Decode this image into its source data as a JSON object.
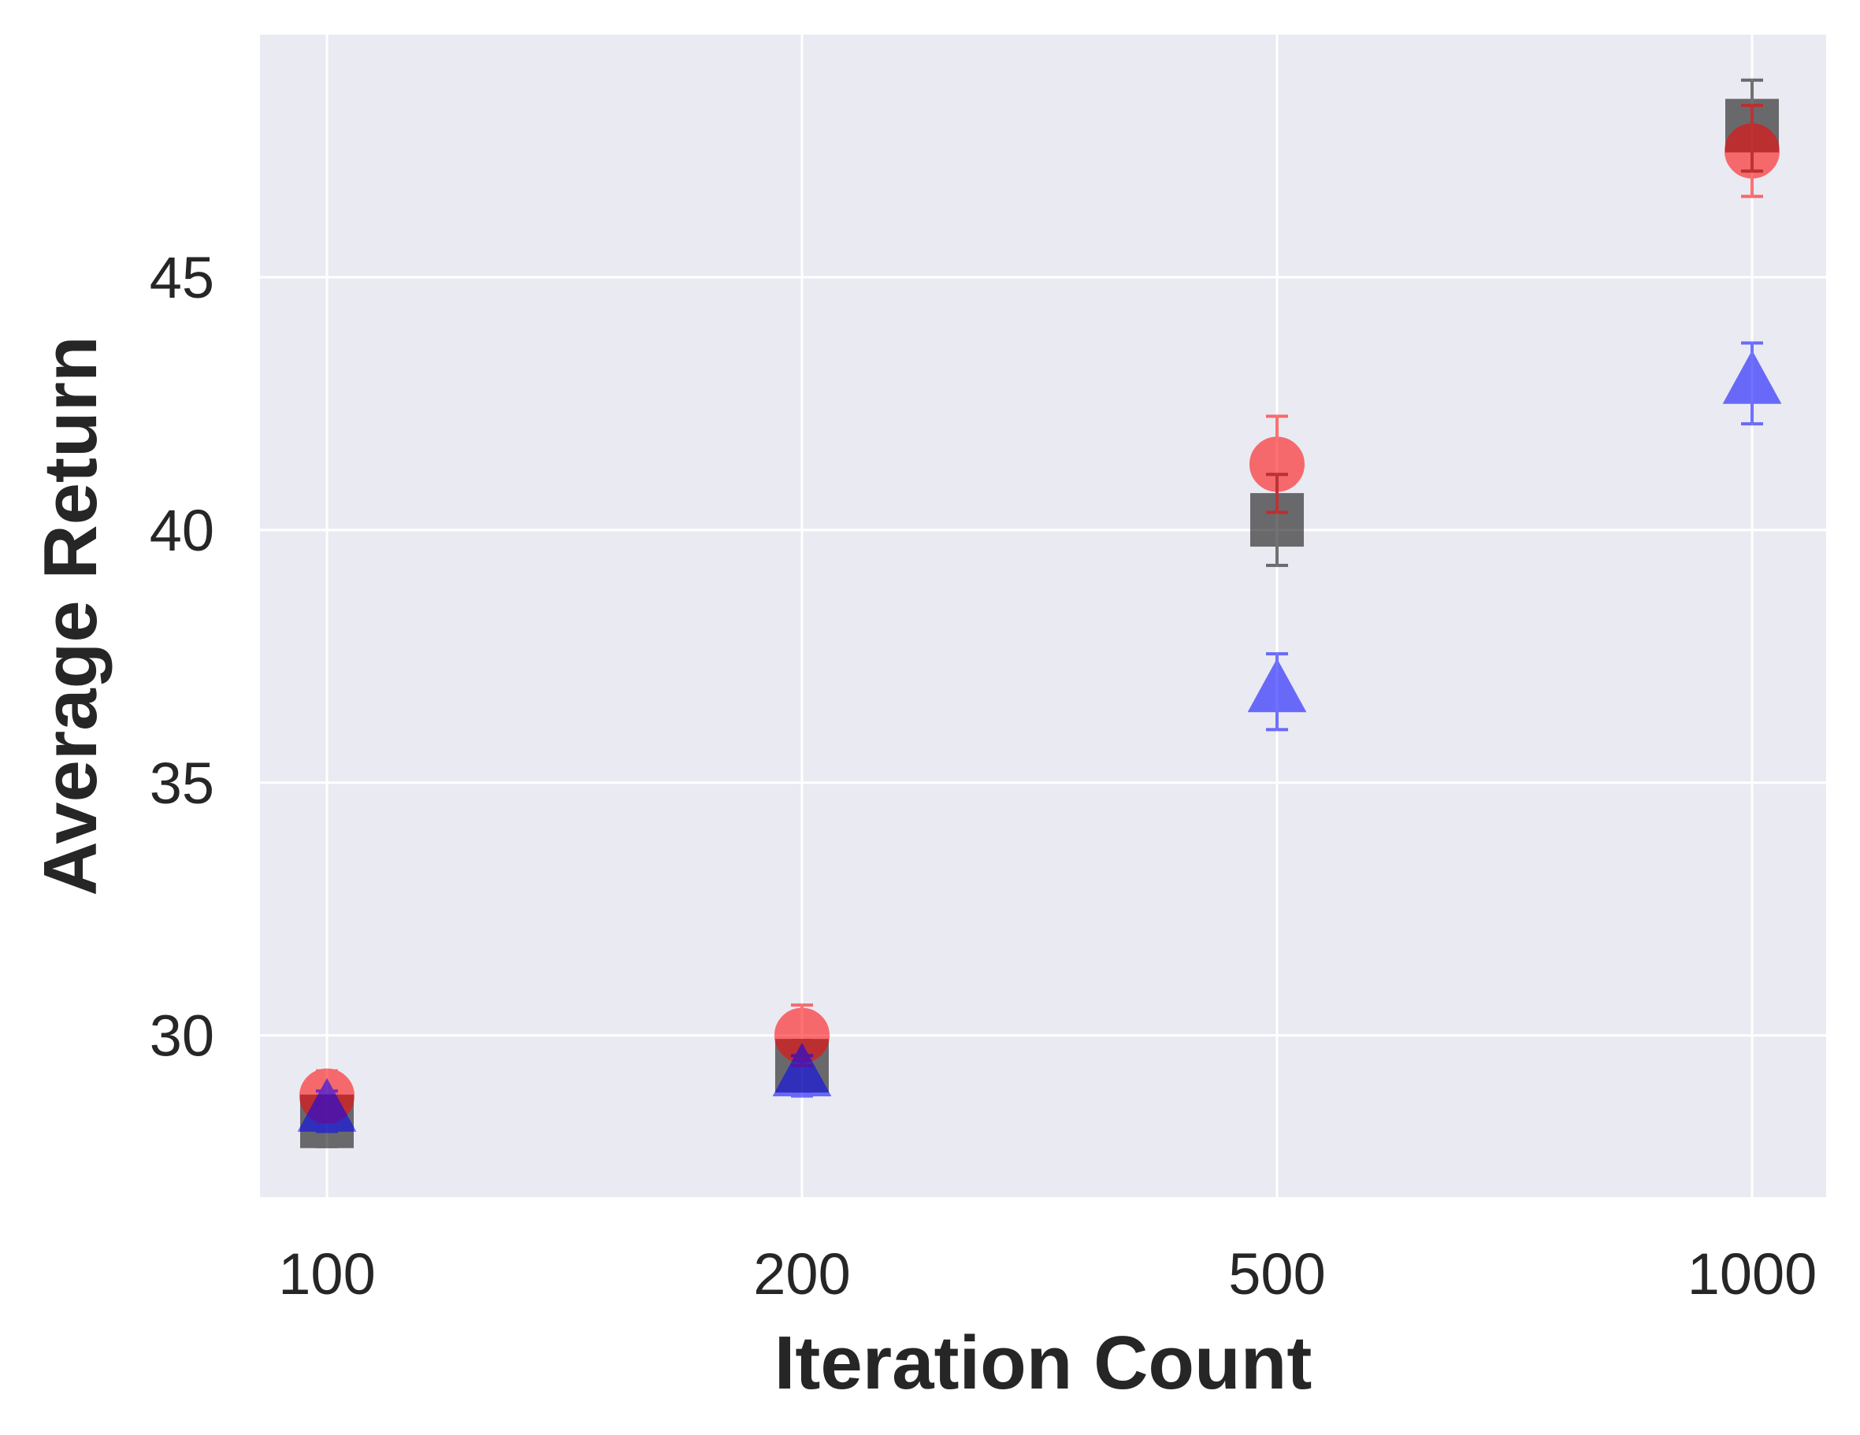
{
  "chart_data": {
    "type": "scatter",
    "title": "",
    "xlabel": "Iteration Count",
    "ylabel": "Average Return",
    "categories": [
      "100",
      "200",
      "500",
      "1000"
    ],
    "y_ticks": [
      30,
      35,
      40,
      45
    ],
    "ylim": [
      26.8,
      49.8
    ],
    "grid": true,
    "series": [
      {
        "marker": "square",
        "color": "#000000",
        "values": [
          28.3,
          29.4,
          40.2,
          48.0
        ],
        "errors": [
          0.5,
          0.5,
          0.9,
          0.9
        ]
      },
      {
        "marker": "circle",
        "color": "#ff0000",
        "values": [
          28.8,
          30.0,
          41.3,
          47.5
        ],
        "errors": [
          0.5,
          0.6,
          0.95,
          0.9
        ]
      },
      {
        "marker": "triangle",
        "color": "#0000ff",
        "values": [
          28.5,
          29.2,
          36.8,
          42.9
        ],
        "errors": [
          0.4,
          0.4,
          0.75,
          0.8
        ]
      }
    ]
  }
}
